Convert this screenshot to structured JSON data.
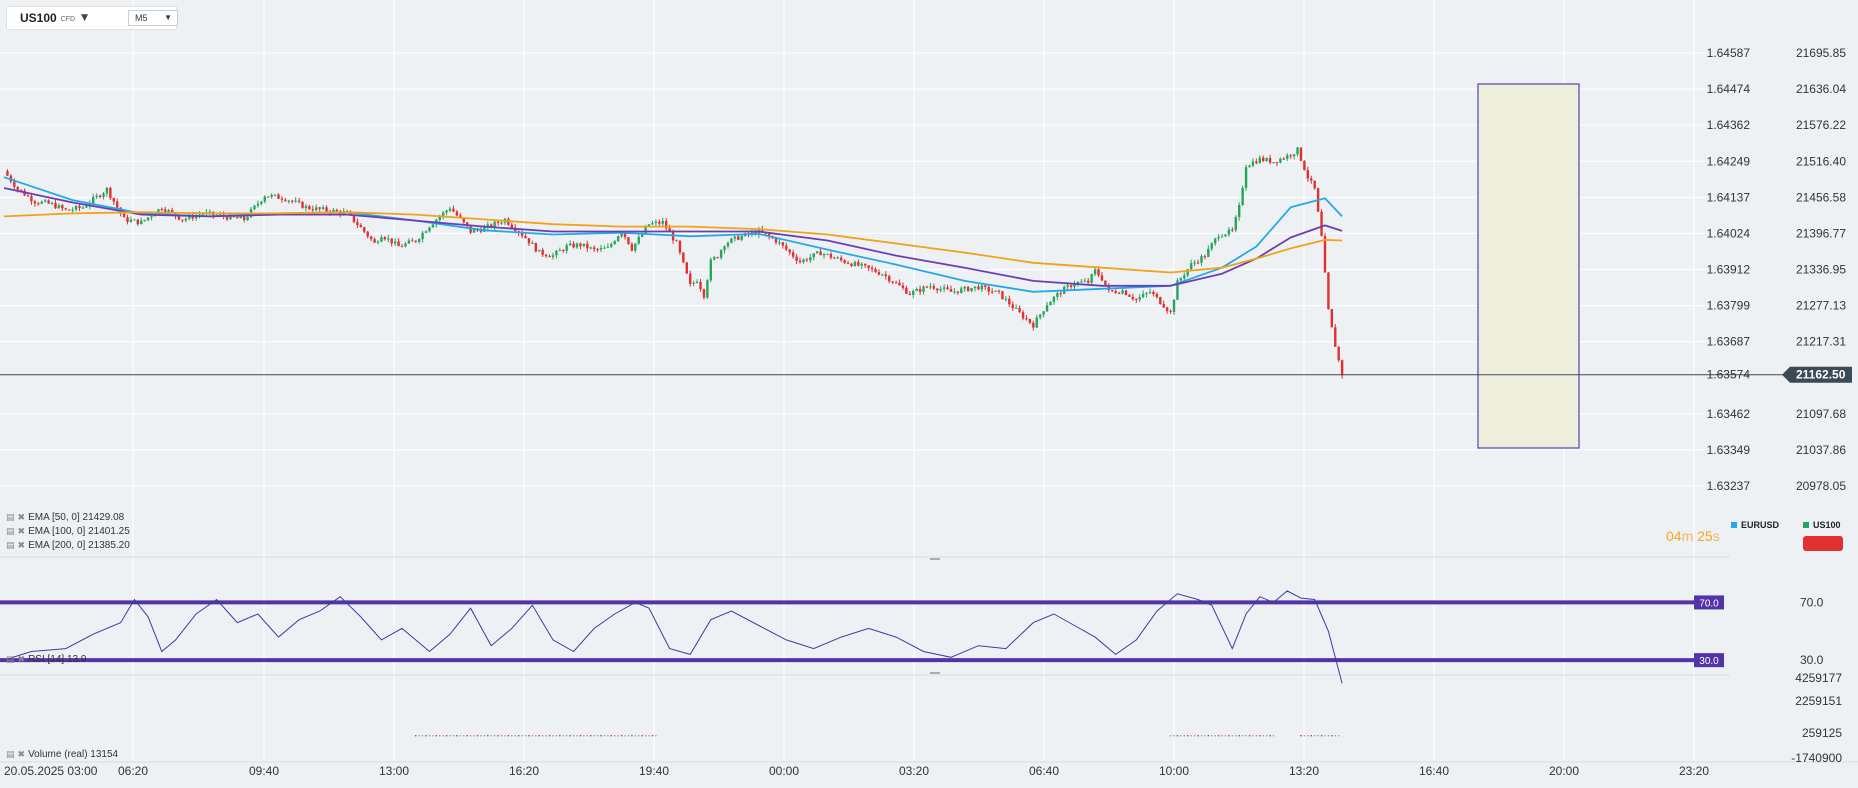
{
  "header": {
    "symbol": "US100",
    "symbol_type": "CFD",
    "timeframe": "M5"
  },
  "indicators": {
    "ema50": "EMA [50, 0] 21429.08",
    "ema100": "EMA [100, 0] 21401.25",
    "ema200": "EMA [200, 0] 21385.20",
    "rsi": "RSI [14] 13.9",
    "volume": "Volume (real) 13154"
  },
  "timer": {
    "minutes": "04",
    "m_unit": "m",
    "seconds": "25",
    "s_unit": "s"
  },
  "legend": {
    "eurusd": "EURUSD",
    "us100": "US100"
  },
  "colors": {
    "up": "#26a65b",
    "down": "#e03030",
    "ema50": "#23a9e8",
    "ema100": "#6a3fb5",
    "ema200": "#f0a21a",
    "rsi": "#3b3d9e",
    "rsi_band": "#5233a8",
    "price_tag": "#3a4a56",
    "highlight_fill": "#eeeedc",
    "highlight_stroke": "#5a3fb0"
  },
  "chart_data": {
    "type": "candlestick",
    "instrument": "US100",
    "timeframe": "M5",
    "x_ticks": [
      "20.05.2025 03:00",
      "06:20",
      "09:40",
      "13:00",
      "16:20",
      "19:40",
      "00:00",
      "03:20",
      "06:40",
      "10:00",
      "13:20",
      "16:40",
      "20:00",
      "23:20"
    ],
    "y_left_ticks": [
      "1.64587",
      "1.64474",
      "1.64362",
      "1.64249",
      "1.64137",
      "1.64024",
      "1.63912",
      "1.63799",
      "1.63687",
      "1.63574",
      "1.63462",
      "1.63349",
      "1.63237"
    ],
    "y_right_ticks": [
      "21695.85",
      "21636.04",
      "21576.22",
      "21516.40",
      "21456.58",
      "21396.77",
      "21336.95",
      "21277.13",
      "21217.31",
      "21162.50",
      "21097.68",
      "21037.86",
      "20978.05"
    ],
    "current_price": "21162.50",
    "ylim": [
      20978.05,
      21695.85
    ],
    "close_path": [
      [
        0,
        21500
      ],
      [
        4,
        21470
      ],
      [
        9,
        21450
      ],
      [
        14,
        21445
      ],
      [
        18,
        21435
      ],
      [
        23,
        21440
      ],
      [
        30,
        21470
      ],
      [
        35,
        21420
      ],
      [
        40,
        21415
      ],
      [
        46,
        21440
      ],
      [
        52,
        21420
      ],
      [
        58,
        21430
      ],
      [
        64,
        21425
      ],
      [
        70,
        21420
      ],
      [
        76,
        21460
      ],
      [
        82,
        21455
      ],
      [
        88,
        21440
      ],
      [
        94,
        21435
      ],
      [
        98,
        21432
      ],
      [
        100,
        21430
      ],
      [
        105,
        21400
      ],
      [
        108,
        21380
      ],
      [
        110,
        21395
      ],
      [
        115,
        21375
      ],
      [
        120,
        21385
      ],
      [
        124,
        21410
      ],
      [
        130,
        21440
      ],
      [
        136,
        21400
      ],
      [
        140,
        21405
      ],
      [
        146,
        21420
      ],
      [
        152,
        21390
      ],
      [
        156,
        21365
      ],
      [
        160,
        21360
      ],
      [
        164,
        21375
      ],
      [
        168,
        21378
      ],
      [
        172,
        21369
      ],
      [
        176,
        21372
      ],
      [
        180,
        21402
      ],
      [
        183,
        21372
      ],
      [
        188,
        21412
      ],
      [
        192,
        21415
      ],
      [
        196,
        21380
      ],
      [
        200,
        21310
      ],
      [
        202,
        21320
      ],
      [
        204,
        21295
      ],
      [
        206,
        21350
      ],
      [
        208,
        21360
      ],
      [
        210,
        21380
      ],
      [
        214,
        21390
      ],
      [
        220,
        21400
      ],
      [
        225,
        21385
      ],
      [
        232,
        21350
      ],
      [
        238,
        21365
      ],
      [
        244,
        21352
      ],
      [
        250,
        21342
      ],
      [
        256,
        21330
      ],
      [
        264,
        21297
      ],
      [
        270,
        21310
      ],
      [
        276,
        21300
      ],
      [
        284,
        21308
      ],
      [
        290,
        21297
      ],
      [
        296,
        21264
      ],
      [
        300,
        21245
      ],
      [
        304,
        21280
      ],
      [
        308,
        21300
      ],
      [
        312,
        21315
      ],
      [
        316,
        21316
      ],
      [
        318,
        21335
      ],
      [
        320,
        21322
      ],
      [
        322,
        21300
      ],
      [
        326,
        21302
      ],
      [
        330,
        21287
      ],
      [
        334,
        21300
      ],
      [
        338,
        21278
      ],
      [
        340,
        21265
      ],
      [
        342,
        21315
      ],
      [
        346,
        21345
      ],
      [
        350,
        21360
      ],
      [
        354,
        21395
      ],
      [
        358,
        21400
      ],
      [
        360,
        21440
      ],
      [
        362,
        21510
      ],
      [
        366,
        21520
      ],
      [
        370,
        21516
      ],
      [
        374,
        21525
      ],
      [
        377,
        21535
      ],
      [
        380,
        21490
      ],
      [
        382,
        21470
      ],
      [
        384,
        21390
      ],
      [
        386,
        21270
      ],
      [
        388,
        21210
      ],
      [
        390,
        21162.5
      ]
    ],
    "ema_series": [
      {
        "name": "EMA [50, 0]",
        "value": "21429.08",
        "points": [
          [
            0,
            21490
          ],
          [
            20,
            21452
          ],
          [
            40,
            21430
          ],
          [
            60,
            21425
          ],
          [
            80,
            21430
          ],
          [
            100,
            21432
          ],
          [
            120,
            21418
          ],
          [
            140,
            21402
          ],
          [
            160,
            21395
          ],
          [
            180,
            21398
          ],
          [
            200,
            21392
          ],
          [
            220,
            21396
          ],
          [
            240,
            21370
          ],
          [
            260,
            21345
          ],
          [
            280,
            21318
          ],
          [
            300,
            21300
          ],
          [
            320,
            21305
          ],
          [
            340,
            21310
          ],
          [
            355,
            21340
          ],
          [
            365,
            21375
          ],
          [
            375,
            21440
          ],
          [
            385,
            21455
          ],
          [
            390,
            21425
          ]
        ]
      },
      {
        "name": "EMA [100, 0]",
        "value": "21401.25",
        "points": [
          [
            0,
            21472
          ],
          [
            20,
            21448
          ],
          [
            40,
            21428
          ],
          [
            60,
            21425
          ],
          [
            80,
            21428
          ],
          [
            100,
            21428
          ],
          [
            120,
            21418
          ],
          [
            140,
            21408
          ],
          [
            160,
            21400
          ],
          [
            180,
            21400
          ],
          [
            200,
            21400
          ],
          [
            220,
            21400
          ],
          [
            240,
            21385
          ],
          [
            260,
            21360
          ],
          [
            280,
            21340
          ],
          [
            300,
            21318
          ],
          [
            320,
            21310
          ],
          [
            340,
            21310
          ],
          [
            355,
            21330
          ],
          [
            365,
            21355
          ],
          [
            375,
            21390
          ],
          [
            385,
            21410
          ],
          [
            390,
            21401
          ]
        ]
      },
      {
        "name": "EMA [200, 0]",
        "value": "21385.20",
        "points": [
          [
            0,
            21425
          ],
          [
            20,
            21430
          ],
          [
            40,
            21432
          ],
          [
            60,
            21430
          ],
          [
            80,
            21430
          ],
          [
            100,
            21432
          ],
          [
            120,
            21428
          ],
          [
            140,
            21420
          ],
          [
            160,
            21412
          ],
          [
            180,
            21408
          ],
          [
            200,
            21408
          ],
          [
            220,
            21404
          ],
          [
            240,
            21395
          ],
          [
            260,
            21380
          ],
          [
            280,
            21365
          ],
          [
            300,
            21348
          ],
          [
            320,
            21340
          ],
          [
            340,
            21332
          ],
          [
            355,
            21340
          ],
          [
            365,
            21355
          ],
          [
            375,
            21372
          ],
          [
            385,
            21386
          ],
          [
            390,
            21385
          ]
        ]
      }
    ],
    "rsi": {
      "period": 14,
      "value": 13.9,
      "levels": [
        70,
        30
      ],
      "level_labels": [
        "70.0",
        "30.0"
      ],
      "axis_ticks": [
        "70.0",
        "30.0"
      ],
      "points": [
        [
          0,
          30
        ],
        [
          8,
          36
        ],
        [
          18,
          38
        ],
        [
          26,
          48
        ],
        [
          34,
          56
        ],
        [
          38,
          72
        ],
        [
          42,
          60
        ],
        [
          46,
          36
        ],
        [
          50,
          44
        ],
        [
          56,
          62
        ],
        [
          62,
          72
        ],
        [
          68,
          56
        ],
        [
          74,
          62
        ],
        [
          80,
          46
        ],
        [
          86,
          58
        ],
        [
          92,
          64
        ],
        [
          98,
          74
        ],
        [
          104,
          60
        ],
        [
          110,
          44
        ],
        [
          116,
          52
        ],
        [
          124,
          36
        ],
        [
          130,
          48
        ],
        [
          136,
          66
        ],
        [
          142,
          40
        ],
        [
          148,
          52
        ],
        [
          154,
          68
        ],
        [
          160,
          44
        ],
        [
          166,
          36
        ],
        [
          172,
          52
        ],
        [
          178,
          62
        ],
        [
          184,
          70
        ],
        [
          188,
          66
        ],
        [
          194,
          38
        ],
        [
          200,
          34
        ],
        [
          206,
          58
        ],
        [
          212,
          64
        ],
        [
          220,
          54
        ],
        [
          228,
          44
        ],
        [
          236,
          38
        ],
        [
          244,
          46
        ],
        [
          252,
          52
        ],
        [
          260,
          46
        ],
        [
          268,
          36
        ],
        [
          276,
          32
        ],
        [
          284,
          40
        ],
        [
          292,
          38
        ],
        [
          300,
          56
        ],
        [
          306,
          62
        ],
        [
          312,
          54
        ],
        [
          318,
          46
        ],
        [
          324,
          34
        ],
        [
          330,
          44
        ],
        [
          336,
          64
        ],
        [
          342,
          76
        ],
        [
          348,
          72
        ],
        [
          352,
          68
        ],
        [
          358,
          38
        ],
        [
          362,
          62
        ],
        [
          366,
          74
        ],
        [
          370,
          70
        ],
        [
          374,
          78
        ],
        [
          378,
          73
        ],
        [
          382,
          72
        ],
        [
          386,
          50
        ],
        [
          390,
          13.9
        ]
      ]
    },
    "volume": {
      "label": "Volume (real)",
      "value": "13154",
      "axis_ticks": [
        "4259177",
        "2259151",
        "259125",
        "-1740900"
      ]
    }
  }
}
